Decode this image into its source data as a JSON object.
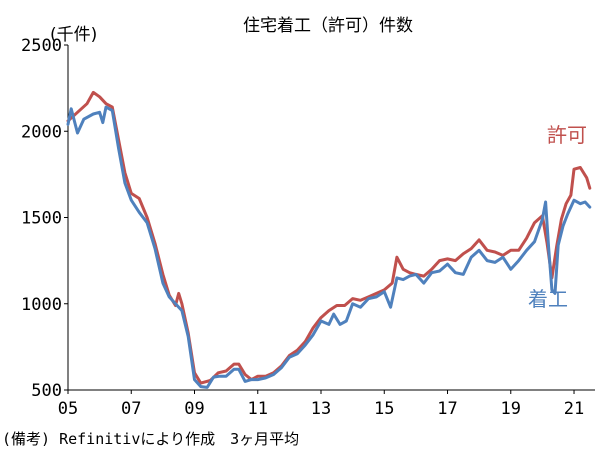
{
  "chart_data": {
    "type": "line",
    "title": "住宅着工（許可）件数",
    "unit": "(千件)",
    "note": "(備考) Refinitivにより作成　3ヶ月平均",
    "xlabel": "",
    "ylabel": "",
    "xlim": [
      2005,
      2021.6
    ],
    "ylim": [
      500,
      2500
    ],
    "y_ticks": [
      500,
      1000,
      1500,
      2000,
      2500
    ],
    "x_ticks": [
      {
        "value": 2005,
        "label": "05"
      },
      {
        "value": 2007,
        "label": "07"
      },
      {
        "value": 2009,
        "label": "09"
      },
      {
        "value": 2011,
        "label": "11"
      },
      {
        "value": 2013,
        "label": "13"
      },
      {
        "value": 2015,
        "label": "15"
      },
      {
        "value": 2017,
        "label": "17"
      },
      {
        "value": 2019,
        "label": "19"
      },
      {
        "value": 2021,
        "label": "21"
      }
    ],
    "grid": false,
    "series": [
      {
        "name": "許可",
        "color": "#c0504d",
        "points": [
          [
            2005.0,
            2060
          ],
          [
            2005.3,
            2110
          ],
          [
            2005.6,
            2160
          ],
          [
            2005.8,
            2225
          ],
          [
            2006.0,
            2200
          ],
          [
            2006.2,
            2160
          ],
          [
            2006.4,
            2140
          ],
          [
            2006.6,
            1950
          ],
          [
            2006.8,
            1760
          ],
          [
            2007.0,
            1640
          ],
          [
            2007.25,
            1610
          ],
          [
            2007.5,
            1500
          ],
          [
            2007.75,
            1350
          ],
          [
            2008.0,
            1170
          ],
          [
            2008.2,
            1050
          ],
          [
            2008.4,
            990
          ],
          [
            2008.5,
            1060
          ],
          [
            2008.6,
            1000
          ],
          [
            2008.8,
            830
          ],
          [
            2009.0,
            600
          ],
          [
            2009.2,
            540
          ],
          [
            2009.5,
            555
          ],
          [
            2009.75,
            600
          ],
          [
            2010.0,
            610
          ],
          [
            2010.25,
            650
          ],
          [
            2010.4,
            650
          ],
          [
            2010.6,
            590
          ],
          [
            2010.8,
            560
          ],
          [
            2011.0,
            580
          ],
          [
            2011.25,
            580
          ],
          [
            2011.5,
            600
          ],
          [
            2011.75,
            640
          ],
          [
            2012.0,
            700
          ],
          [
            2012.25,
            730
          ],
          [
            2012.5,
            780
          ],
          [
            2012.75,
            860
          ],
          [
            2013.0,
            920
          ],
          [
            2013.25,
            960
          ],
          [
            2013.5,
            990
          ],
          [
            2013.75,
            990
          ],
          [
            2014.0,
            1030
          ],
          [
            2014.25,
            1020
          ],
          [
            2014.5,
            1040
          ],
          [
            2014.75,
            1060
          ],
          [
            2015.0,
            1080
          ],
          [
            2015.25,
            1120
          ],
          [
            2015.4,
            1270
          ],
          [
            2015.6,
            1200
          ],
          [
            2015.8,
            1180
          ],
          [
            2016.0,
            1170
          ],
          [
            2016.25,
            1160
          ],
          [
            2016.5,
            1200
          ],
          [
            2016.75,
            1250
          ],
          [
            2017.0,
            1260
          ],
          [
            2017.25,
            1250
          ],
          [
            2017.5,
            1290
          ],
          [
            2017.75,
            1320
          ],
          [
            2018.0,
            1370
          ],
          [
            2018.25,
            1310
          ],
          [
            2018.5,
            1300
          ],
          [
            2018.75,
            1280
          ],
          [
            2019.0,
            1310
          ],
          [
            2019.25,
            1310
          ],
          [
            2019.5,
            1380
          ],
          [
            2019.75,
            1470
          ],
          [
            2020.0,
            1510
          ],
          [
            2020.15,
            1350
          ],
          [
            2020.3,
            1150
          ],
          [
            2020.45,
            1330
          ],
          [
            2020.6,
            1490
          ],
          [
            2020.75,
            1580
          ],
          [
            2020.9,
            1630
          ],
          [
            2021.0,
            1780
          ],
          [
            2021.2,
            1790
          ],
          [
            2021.4,
            1730
          ],
          [
            2021.5,
            1670
          ]
        ]
      },
      {
        "name": "着工",
        "color": "#4f81bd",
        "points": [
          [
            2005.0,
            2040
          ],
          [
            2005.1,
            2130
          ],
          [
            2005.3,
            1990
          ],
          [
            2005.5,
            2070
          ],
          [
            2005.8,
            2100
          ],
          [
            2006.0,
            2110
          ],
          [
            2006.1,
            2050
          ],
          [
            2006.2,
            2140
          ],
          [
            2006.4,
            2120
          ],
          [
            2006.6,
            1900
          ],
          [
            2006.8,
            1700
          ],
          [
            2007.0,
            1600
          ],
          [
            2007.25,
            1530
          ],
          [
            2007.5,
            1470
          ],
          [
            2007.75,
            1320
          ],
          [
            2008.0,
            1120
          ],
          [
            2008.2,
            1040
          ],
          [
            2008.4,
            1000
          ],
          [
            2008.6,
            960
          ],
          [
            2008.8,
            810
          ],
          [
            2009.0,
            560
          ],
          [
            2009.2,
            520
          ],
          [
            2009.4,
            515
          ],
          [
            2009.6,
            575
          ],
          [
            2009.8,
            580
          ],
          [
            2010.0,
            580
          ],
          [
            2010.25,
            620
          ],
          [
            2010.4,
            620
          ],
          [
            2010.6,
            550
          ],
          [
            2010.8,
            560
          ],
          [
            2011.0,
            560
          ],
          [
            2011.25,
            570
          ],
          [
            2011.5,
            590
          ],
          [
            2011.75,
            630
          ],
          [
            2012.0,
            690
          ],
          [
            2012.25,
            710
          ],
          [
            2012.5,
            760
          ],
          [
            2012.75,
            820
          ],
          [
            2013.0,
            900
          ],
          [
            2013.25,
            880
          ],
          [
            2013.4,
            940
          ],
          [
            2013.6,
            880
          ],
          [
            2013.8,
            900
          ],
          [
            2014.0,
            1000
          ],
          [
            2014.25,
            980
          ],
          [
            2014.5,
            1030
          ],
          [
            2014.75,
            1040
          ],
          [
            2015.0,
            1070
          ],
          [
            2015.2,
            980
          ],
          [
            2015.4,
            1150
          ],
          [
            2015.6,
            1140
          ],
          [
            2015.8,
            1160
          ],
          [
            2016.0,
            1170
          ],
          [
            2016.25,
            1120
          ],
          [
            2016.5,
            1180
          ],
          [
            2016.75,
            1190
          ],
          [
            2017.0,
            1230
          ],
          [
            2017.25,
            1180
          ],
          [
            2017.5,
            1170
          ],
          [
            2017.75,
            1270
          ],
          [
            2018.0,
            1310
          ],
          [
            2018.25,
            1250
          ],
          [
            2018.5,
            1240
          ],
          [
            2018.75,
            1270
          ],
          [
            2019.0,
            1200
          ],
          [
            2019.25,
            1250
          ],
          [
            2019.5,
            1310
          ],
          [
            2019.75,
            1360
          ],
          [
            2020.0,
            1490
          ],
          [
            2020.1,
            1590
          ],
          [
            2020.2,
            1320
          ],
          [
            2020.3,
            1080
          ],
          [
            2020.4,
            1060
          ],
          [
            2020.5,
            1340
          ],
          [
            2020.65,
            1450
          ],
          [
            2020.8,
            1520
          ],
          [
            2021.0,
            1600
          ],
          [
            2021.2,
            1580
          ],
          [
            2021.35,
            1590
          ],
          [
            2021.5,
            1560
          ]
        ]
      }
    ]
  }
}
